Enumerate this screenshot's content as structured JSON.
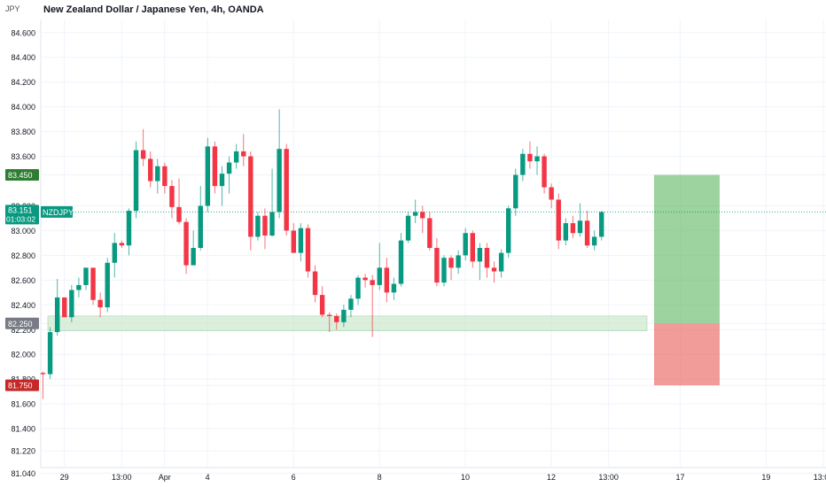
{
  "header": {
    "symbol_corner": "JPY",
    "title": "New Zealand Dollar / Japanese Yen, 4h, OANDA"
  },
  "colors": {
    "up": "#089981",
    "down": "#f23645",
    "grid": "#f0f3fa",
    "axis_text": "#131722",
    "support_zone": "#c8e6c9",
    "target_zone": "#4caf50",
    "stop_zone": "#e53935"
  },
  "price_labels": {
    "target": "83.450",
    "entry": "82.250",
    "stop": "81.750",
    "current": "83.151",
    "countdown": "01:03:02",
    "ticker": "NZDJPY"
  },
  "chart_data": {
    "type": "candlestick",
    "ylim": [
      81.0,
      84.72
    ],
    "y_ticks": [
      "84.600",
      "84.400",
      "84.200",
      "84.000",
      "83.800",
      "83.600",
      "83.450",
      "83.200",
      "83.000",
      "82.800",
      "82.600",
      "82.400",
      "82.250",
      "82.200",
      "82.000",
      "81.800",
      "81.750",
      "81.600",
      "81.400",
      "81.220",
      "81.040"
    ],
    "x_ticks": [
      {
        "label": "29",
        "i": 1
      },
      {
        "label": "13:00",
        "i": 9
      },
      {
        "label": "Apr",
        "i": 15
      },
      {
        "label": "4",
        "i": 21
      },
      {
        "label": "6",
        "i": 33
      },
      {
        "label": "8",
        "i": 45
      },
      {
        "label": "10",
        "i": 57
      },
      {
        "label": "12",
        "i": 69
      },
      {
        "label": "13:00",
        "i": 77
      },
      {
        "label": "17",
        "i": 87
      },
      {
        "label": "19",
        "i": 99
      },
      {
        "label": "13:00",
        "i": 107
      }
    ],
    "candles": [
      [
        81.85,
        81.86,
        81.64,
        81.84
      ],
      [
        81.84,
        82.22,
        81.8,
        82.18
      ],
      [
        82.18,
        82.61,
        82.15,
        82.46
      ],
      [
        82.46,
        82.46,
        82.3,
        82.3
      ],
      [
        82.3,
        82.56,
        82.26,
        82.52
      ],
      [
        82.52,
        82.62,
        82.46,
        82.56
      ],
      [
        82.56,
        82.7,
        82.52,
        82.7
      ],
      [
        82.7,
        82.7,
        82.4,
        82.44
      ],
      [
        82.44,
        82.5,
        82.3,
        82.38
      ],
      [
        82.38,
        82.78,
        82.34,
        82.74
      ],
      [
        82.74,
        82.98,
        82.62,
        82.9
      ],
      [
        82.9,
        82.92,
        82.86,
        82.88
      ],
      [
        82.88,
        83.18,
        82.8,
        83.16
      ],
      [
        83.16,
        83.72,
        83.1,
        83.65
      ],
      [
        83.65,
        83.82,
        83.52,
        83.58
      ],
      [
        83.58,
        83.64,
        83.35,
        83.4
      ],
      [
        83.4,
        83.58,
        83.3,
        83.52
      ],
      [
        83.52,
        83.55,
        83.3,
        83.36
      ],
      [
        83.36,
        83.41,
        83.1,
        83.19
      ],
      [
        83.19,
        83.42,
        83.05,
        83.07
      ],
      [
        83.07,
        83.1,
        82.65,
        82.72
      ],
      [
        82.72,
        83.0,
        82.72,
        82.86
      ],
      [
        82.86,
        83.36,
        82.84,
        83.2
      ],
      [
        83.2,
        83.75,
        83.15,
        83.68
      ],
      [
        83.68,
        83.72,
        83.3,
        83.36
      ],
      [
        83.36,
        83.52,
        83.2,
        83.46
      ],
      [
        83.46,
        83.6,
        83.3,
        83.55
      ],
      [
        83.55,
        83.7,
        83.5,
        83.64
      ],
      [
        83.64,
        83.78,
        83.52,
        83.6
      ],
      [
        83.6,
        83.64,
        82.84,
        82.95
      ],
      [
        82.95,
        83.15,
        82.92,
        83.12
      ],
      [
        83.12,
        83.18,
        82.85,
        82.96
      ],
      [
        82.96,
        83.5,
        82.95,
        83.15
      ],
      [
        83.15,
        83.98,
        83.1,
        83.66
      ],
      [
        83.66,
        83.7,
        82.96,
        83.0
      ],
      [
        83.0,
        83.06,
        82.82,
        82.82
      ],
      [
        82.82,
        83.06,
        82.75,
        83.02
      ],
      [
        83.02,
        83.05,
        82.62,
        82.67
      ],
      [
        82.67,
        82.72,
        82.42,
        82.48
      ],
      [
        82.48,
        82.55,
        82.3,
        82.32
      ],
      [
        82.32,
        82.34,
        82.18,
        82.31
      ],
      [
        82.31,
        82.33,
        82.2,
        82.26
      ],
      [
        82.26,
        82.4,
        82.22,
        82.36
      ],
      [
        82.36,
        82.48,
        82.3,
        82.45
      ],
      [
        82.45,
        82.64,
        82.4,
        82.62
      ],
      [
        82.62,
        82.65,
        82.54,
        82.6
      ],
      [
        82.6,
        82.64,
        82.14,
        82.56
      ],
      [
        82.56,
        82.9,
        82.52,
        82.7
      ],
      [
        82.7,
        82.78,
        82.42,
        82.5
      ],
      [
        82.5,
        82.62,
        82.44,
        82.57
      ],
      [
        82.57,
        82.98,
        82.55,
        82.92
      ],
      [
        82.92,
        83.15,
        82.9,
        83.12
      ],
      [
        83.12,
        83.25,
        83.06,
        83.15
      ],
      [
        83.15,
        83.2,
        82.98,
        83.1
      ],
      [
        83.1,
        83.15,
        82.84,
        82.86
      ],
      [
        82.86,
        82.94,
        82.55,
        82.58
      ],
      [
        82.58,
        82.8,
        82.55,
        82.78
      ],
      [
        82.78,
        82.8,
        82.6,
        82.7
      ],
      [
        82.7,
        82.84,
        82.65,
        82.8
      ],
      [
        82.8,
        83.02,
        82.76,
        82.98
      ],
      [
        82.98,
        83.0,
        82.7,
        82.75
      ],
      [
        82.75,
        82.9,
        82.6,
        82.86
      ],
      [
        82.86,
        82.9,
        82.62,
        82.7
      ],
      [
        82.7,
        82.75,
        82.58,
        82.67
      ],
      [
        82.67,
        82.85,
        82.62,
        82.82
      ],
      [
        82.82,
        83.2,
        82.78,
        83.18
      ],
      [
        83.18,
        83.5,
        83.12,
        83.45
      ],
      [
        83.45,
        83.66,
        83.4,
        83.62
      ],
      [
        83.62,
        83.72,
        83.5,
        83.56
      ],
      [
        83.56,
        83.68,
        83.45,
        83.6
      ],
      [
        83.6,
        83.62,
        83.3,
        83.35
      ],
      [
        83.35,
        83.38,
        83.18,
        83.25
      ],
      [
        83.25,
        83.3,
        82.85,
        82.92
      ],
      [
        82.92,
        83.1,
        82.88,
        83.06
      ],
      [
        83.06,
        83.12,
        82.94,
        82.98
      ],
      [
        82.98,
        83.22,
        82.95,
        83.08
      ],
      [
        83.08,
        83.16,
        82.86,
        82.88
      ],
      [
        82.88,
        83.0,
        82.84,
        82.95
      ],
      [
        82.95,
        83.16,
        82.92,
        83.15
      ]
    ],
    "support_zone": {
      "low": 82.19,
      "high": 82.31
    },
    "target_zone": {
      "low": 82.25,
      "high": 83.45
    },
    "stop_zone": {
      "low": 81.75,
      "high": 82.25
    },
    "current_price": 83.151
  }
}
